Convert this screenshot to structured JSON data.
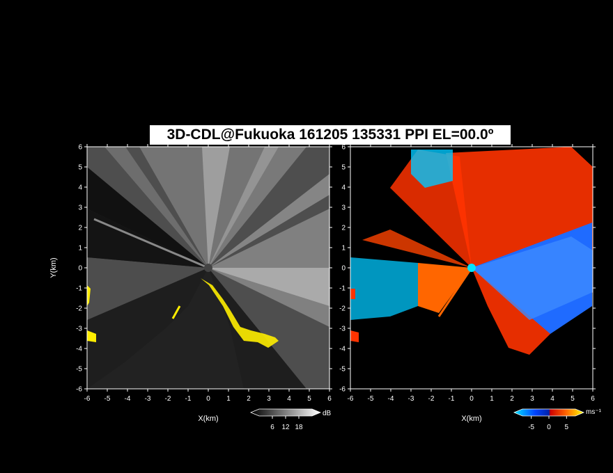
{
  "title": "3D-CDL@Fukuoka 161205 135331 PPI EL=00.0º",
  "chart_data": [
    {
      "type": "heatmap",
      "name": "backscatter",
      "xlabel": "X(km)",
      "ylabel": "Y(km)",
      "xlim": [
        -6,
        6
      ],
      "ylim": [
        -6,
        6
      ],
      "xticks": [
        "-6",
        "-5",
        "-4",
        "-3",
        "-2",
        "-1",
        "0",
        "1",
        "2",
        "3",
        "4",
        "5",
        "6"
      ],
      "yticks": [
        "-6",
        "-5",
        "-4",
        "-3",
        "-2",
        "-1",
        "0",
        "1",
        "2",
        "3",
        "4",
        "5",
        "6"
      ],
      "colorbar": {
        "unit": "dB",
        "ticks": [
          "6",
          "12",
          "18"
        ],
        "range": [
          0,
          24
        ],
        "colors": [
          "#000000",
          "#ffffff"
        ]
      }
    },
    {
      "type": "heatmap",
      "name": "doppler-velocity",
      "xlabel": "X(km)",
      "ylabel": "",
      "xlim": [
        -6,
        6
      ],
      "ylim": [
        -6,
        6
      ],
      "xticks": [
        "-6",
        "-5",
        "-4",
        "-3",
        "-2",
        "-1",
        "0",
        "1",
        "2",
        "3",
        "4",
        "5",
        "6"
      ],
      "yticks": [
        "-6",
        "-5",
        "-4",
        "-3",
        "-2",
        "-1",
        "0",
        "1",
        "2",
        "3",
        "4",
        "5",
        "6"
      ],
      "colorbar": {
        "unit": "ms⁻¹",
        "ticks": [
          "-5",
          "0",
          "5"
        ],
        "range": [
          -7.5,
          7.5
        ],
        "colors": [
          "#00e5ff",
          "#0033ff",
          "#ff3300",
          "#ffff00"
        ]
      }
    }
  ]
}
